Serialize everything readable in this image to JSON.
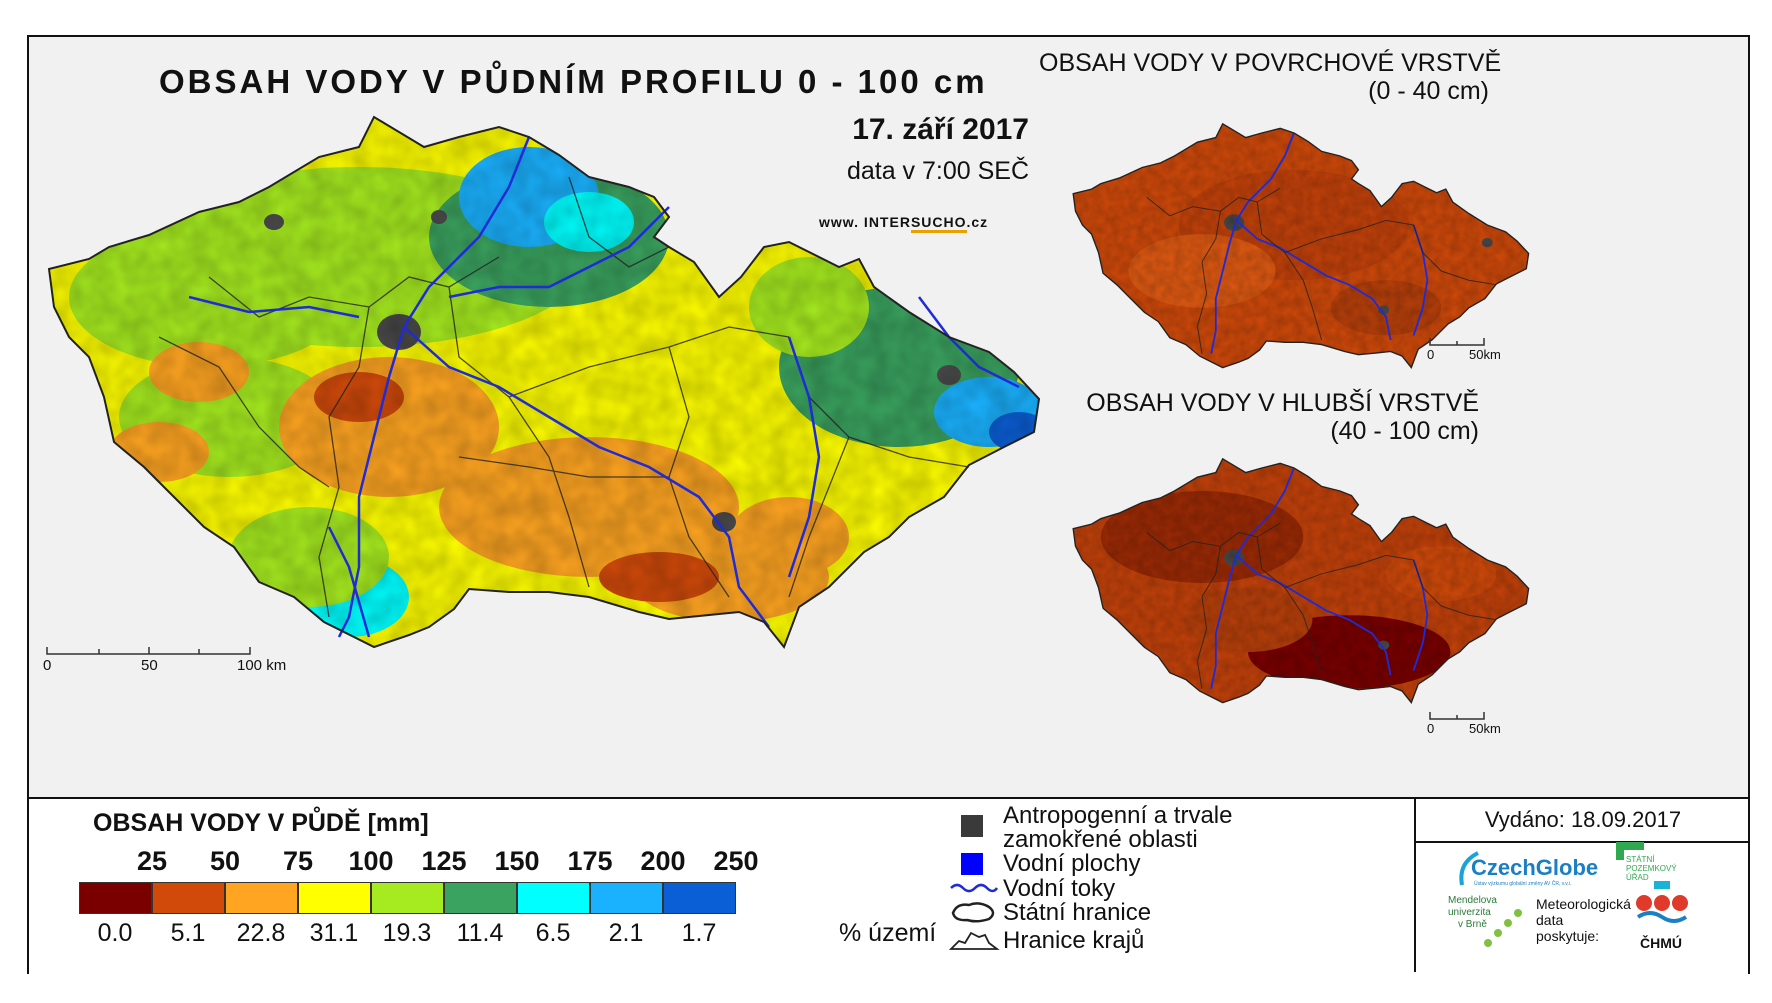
{
  "header": {
    "title": "OBSAH VODY V PŮDNÍM PROFILU 0 - 100 cm",
    "date": "17. září 2017",
    "time": "data v 7:00 SEČ",
    "website_prefix": "www. INTER",
    "website_strong": "SUCHO",
    "website_suffix": ".cz"
  },
  "surface_map": {
    "title_line1": "OBSAH VODY V POVRCHOVÉ VRSTVĚ",
    "title_line2": "(0 - 40 cm)",
    "scale_labels": [
      "0",
      "50km"
    ]
  },
  "deep_map": {
    "title_line1": "OBSAH VODY V HLUBŠÍ VRSTVĚ",
    "title_line2": "(40 - 100 cm)",
    "scale_labels": [
      "0",
      "50km"
    ]
  },
  "main_map": {
    "scale_labels": [
      "0",
      "50",
      "100 km"
    ]
  },
  "legend": {
    "title": "OBSAH VODY V PŮDĚ [mm]",
    "thresholds": [
      "25",
      "50",
      "75",
      "100",
      "125",
      "150",
      "175",
      "200",
      "250"
    ],
    "classes": [
      {
        "color": "#7a0000",
        "percent": "0.0"
      },
      {
        "color": "#d14a0a",
        "percent": "5.1"
      },
      {
        "color": "#ffa521",
        "percent": "22.8"
      },
      {
        "color": "#ffff00",
        "percent": "31.1"
      },
      {
        "color": "#a6eb1f",
        "percent": "19.3"
      },
      {
        "color": "#3aa35f",
        "percent": "11.4"
      },
      {
        "color": "#00ffff",
        "percent": "6.5"
      },
      {
        "color": "#1ab2ff",
        "percent": "2.1"
      },
      {
        "color": "#0a5fd6",
        "percent": "1.7"
      }
    ],
    "percent_unit": "% území",
    "symbols": {
      "anthropogenic_line1": "Antropogenní a trvale",
      "anthropogenic_line2": "zamokřené oblasti",
      "water_bodies": "Vodní plochy",
      "rivers": "Vodní toky",
      "state_border": "Státní hranice",
      "region_border": "Hranice krajů"
    }
  },
  "issued": "Vydáno: 18.09.2017",
  "logos": {
    "czechglobe": "CzechGlobe",
    "czechglobe_sub": "Ústav výzkumu globální změny AV ČR, v.v.i.",
    "spu_line1": "STÁTNÍ",
    "spu_line2": "POZEMKOVÝ",
    "spu_line3": "ÚŘAD",
    "mendel_line1": "Mendelova",
    "mendel_line2": "univerzita",
    "mendel_line3": "v Brně",
    "meteo_line1": "Meteorologická",
    "meteo_line2": "data",
    "meteo_line3": "poskytuje:",
    "chmu": "ČHMÚ"
  },
  "colors": {
    "frame": "#111111",
    "map_background": "#f1f1f1",
    "river": "#1f2bd6",
    "urban": "#4a4a4a"
  }
}
